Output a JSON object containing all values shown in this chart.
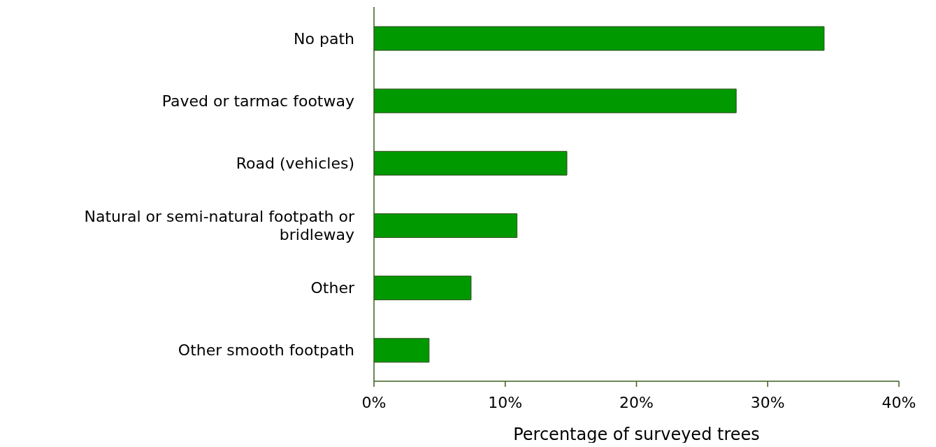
{
  "chart_data": {
    "type": "bar",
    "orientation": "horizontal",
    "xlabel": "Percentage of surveyed trees",
    "categories": [
      "No path",
      "Paved or tarmac footway",
      "Road (vehicles)",
      "Natural or semi-natural footpath or bridleway",
      "Other",
      "Other smooth footpath"
    ],
    "values": [
      34.3,
      27.6,
      14.7,
      10.9,
      7.4,
      4.2
    ],
    "color": "#009900",
    "xlim": [
      0,
      40
    ],
    "xticks": [
      {
        "value": 0,
        "label": "0%"
      },
      {
        "value": 10,
        "label": "10%"
      },
      {
        "value": 20,
        "label": "20%"
      },
      {
        "value": 30,
        "label": "30%"
      },
      {
        "value": 40,
        "label": "40%"
      }
    ],
    "grid": false,
    "legend": false
  }
}
